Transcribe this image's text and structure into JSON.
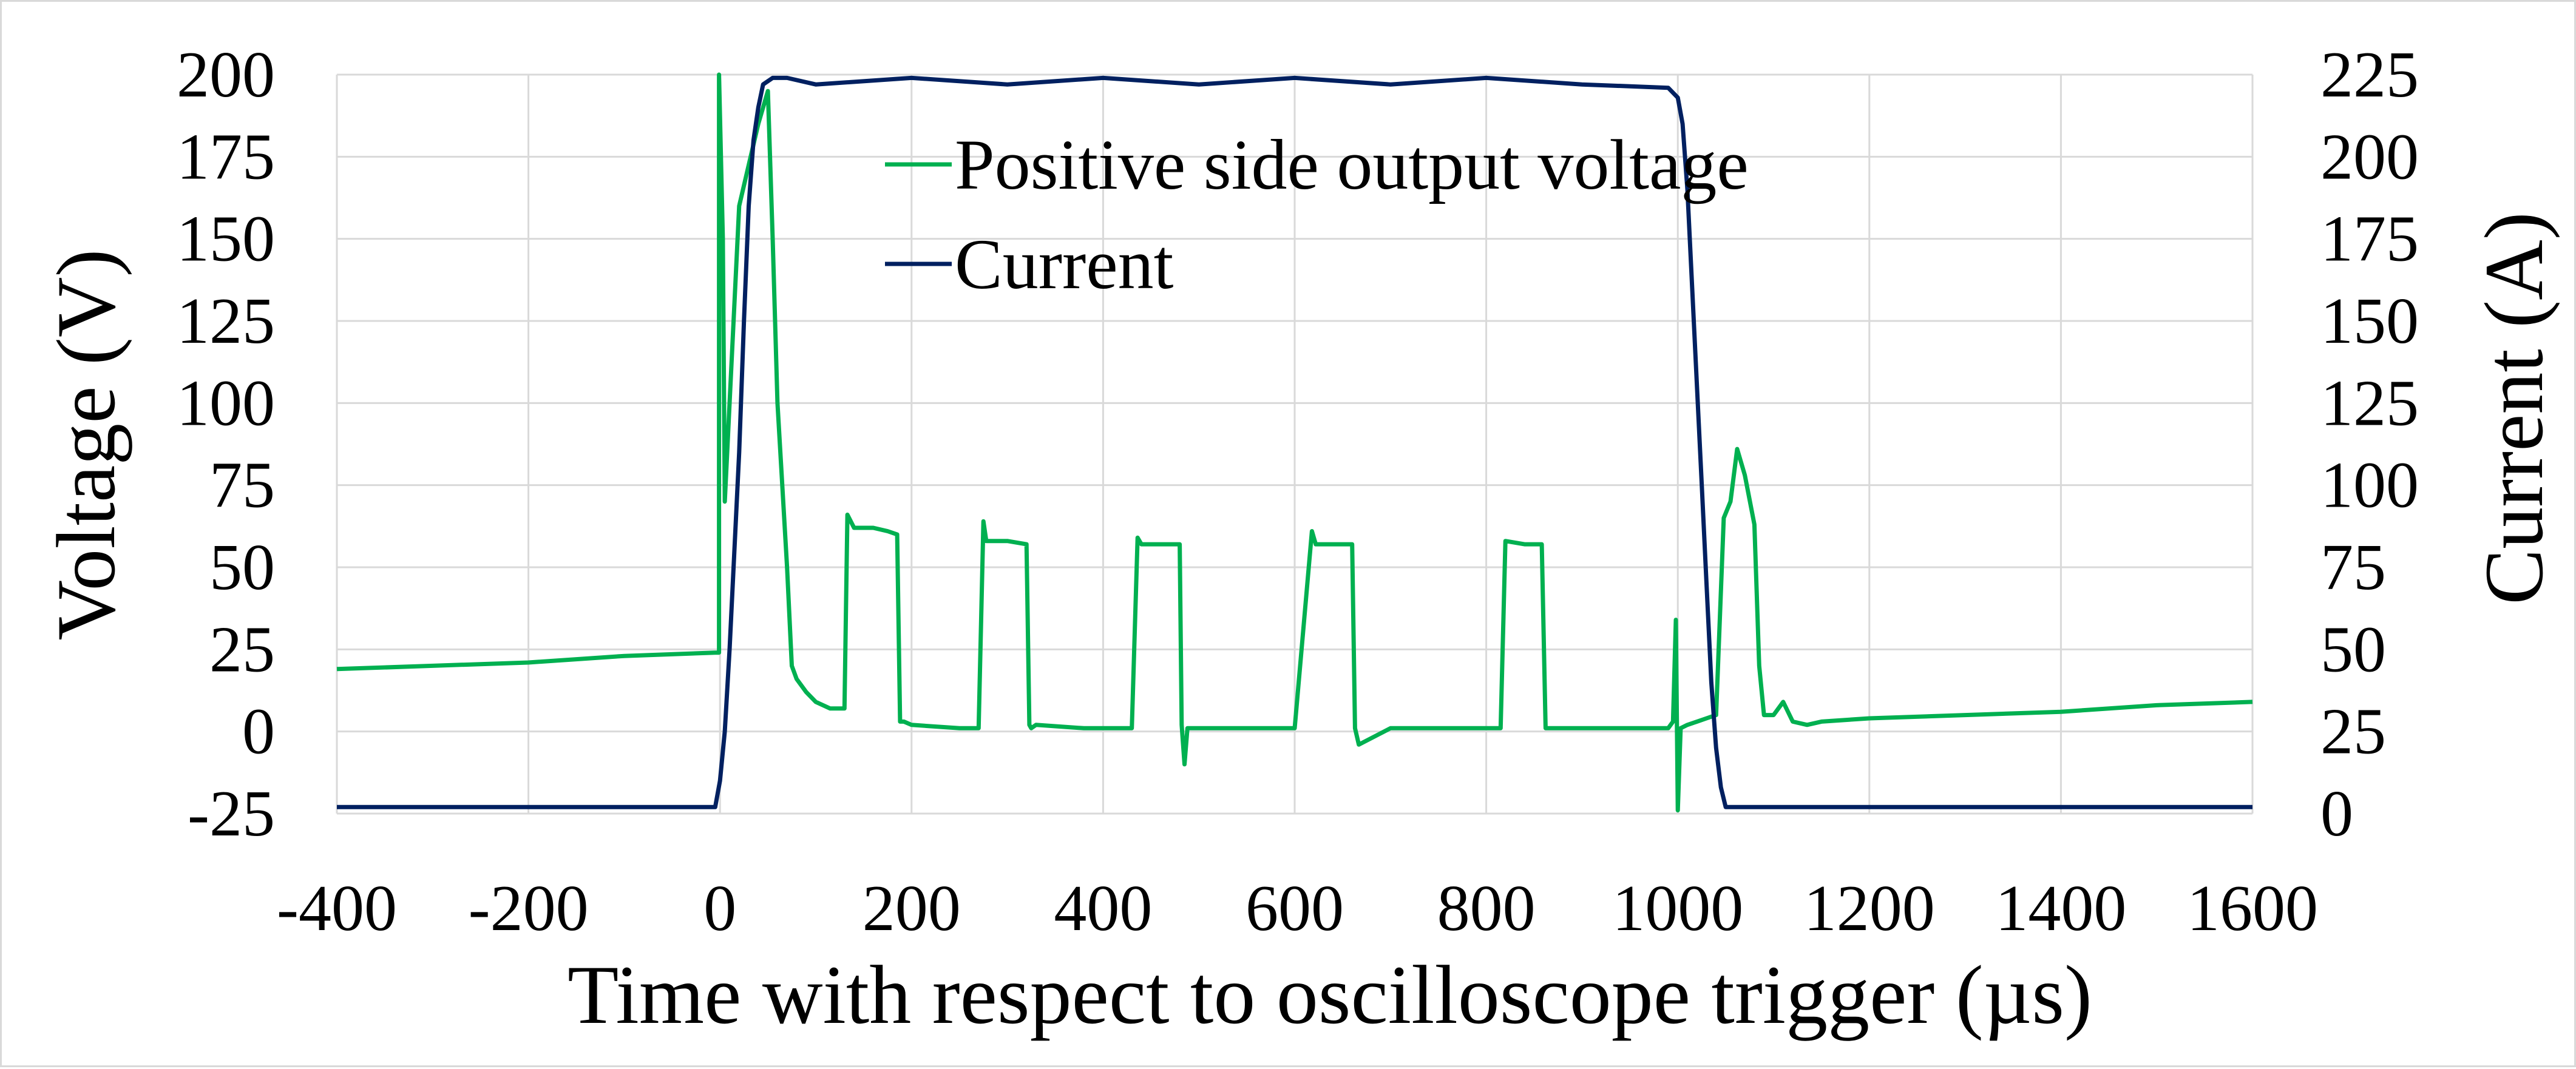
{
  "chart_data": {
    "type": "line",
    "xlabel": "Time with respect to oscilloscope trigger (µs)",
    "ylabel_left": "Voltage  (V)",
    "ylabel_right": "Current (A)",
    "xlim": [
      -400,
      1600
    ],
    "ylim_left": [
      -25,
      200
    ],
    "ylim_right": [
      0,
      225
    ],
    "x_ticks": [
      -400,
      -200,
      0,
      200,
      400,
      600,
      800,
      1000,
      1200,
      1400,
      1600
    ],
    "y_ticks_left": [
      -25,
      0,
      25,
      50,
      75,
      100,
      125,
      150,
      175,
      200
    ],
    "y_ticks_right": [
      0,
      25,
      50,
      75,
      100,
      125,
      150,
      175,
      200,
      225
    ],
    "grid": true,
    "legend_position": "top-center",
    "series": [
      {
        "name": "Positive side output voltage",
        "axis": "left",
        "color": "#00b050",
        "x": [
          -400,
          -300,
          -200,
          -100,
          -5,
          -1,
          -1,
          3,
          5,
          10,
          20,
          40,
          50,
          55,
          60,
          65,
          70,
          75,
          80,
          90,
          100,
          115,
          130,
          133,
          140,
          160,
          175,
          185,
          188,
          192,
          200,
          250,
          270,
          275,
          278,
          282,
          300,
          320,
          323,
          325,
          330,
          380,
          430,
          436,
          440,
          460,
          480,
          482,
          485,
          488,
          500,
          550,
          600,
          618,
          622,
          640,
          660,
          663,
          667,
          700,
          750,
          800,
          815,
          820,
          840,
          855,
          858,
          862,
          880,
          950,
          980,
          990,
          995,
          998,
          1000,
          1003,
          1010,
          1020,
          1030,
          1040,
          1048,
          1055,
          1062,
          1070,
          1080,
          1085,
          1090,
          1100,
          1110,
          1120,
          1135,
          1150,
          1200,
          1300,
          1400,
          1500,
          1600
        ],
        "y": [
          19,
          20,
          21,
          23,
          24,
          24,
          200,
          150,
          70,
          100,
          160,
          185,
          195,
          150,
          100,
          75,
          50,
          20,
          16,
          12,
          9,
          7,
          7,
          66,
          62,
          62,
          61,
          60,
          3,
          3,
          2,
          1,
          1,
          64,
          58,
          58,
          58,
          57,
          2,
          1,
          2,
          1,
          1,
          59,
          57,
          57,
          57,
          2,
          -10,
          1,
          1,
          1,
          1,
          61,
          57,
          57,
          57,
          1,
          -4,
          1,
          1,
          1,
          1,
          58,
          57,
          57,
          57,
          1,
          1,
          1,
          1,
          1,
          3,
          34,
          -24,
          1,
          2,
          3,
          4,
          5,
          65,
          70,
          86,
          78,
          63,
          20,
          5,
          5,
          9,
          3,
          2,
          3,
          4,
          5,
          6,
          8,
          9
        ]
      },
      {
        "name": "Current",
        "axis": "right",
        "color": "#002060",
        "x": [
          -400,
          -100,
          -20,
          -5,
          0,
          5,
          10,
          15,
          20,
          25,
          30,
          35,
          40,
          45,
          55,
          70,
          100,
          200,
          300,
          400,
          500,
          600,
          700,
          800,
          900,
          990,
          1000,
          1005,
          1010,
          1015,
          1020,
          1025,
          1030,
          1035,
          1040,
          1045,
          1050,
          1060,
          1200,
          1400,
          1600
        ],
        "y": [
          2,
          2,
          2,
          2,
          10,
          25,
          50,
          80,
          110,
          150,
          185,
          205,
          215,
          222,
          224,
          224,
          222,
          224,
          222,
          224,
          222,
          224,
          222,
          224,
          222,
          221,
          218,
          210,
          190,
          160,
          130,
          100,
          70,
          40,
          20,
          8,
          2,
          2,
          2,
          2,
          2
        ]
      }
    ]
  }
}
